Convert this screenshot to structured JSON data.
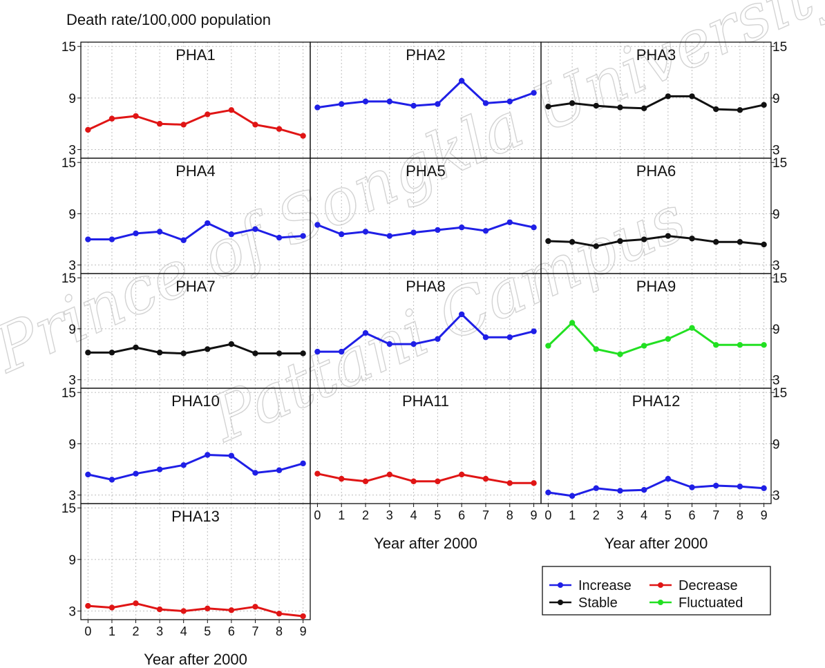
{
  "chart_data": {
    "type": "line",
    "ylabel": "Death rate/100,000 population",
    "xlabel": "Year after 2000",
    "x": [
      0,
      1,
      2,
      3,
      4,
      5,
      6,
      7,
      8,
      9
    ],
    "x_ticks": [
      "0",
      "1",
      "2",
      "3",
      "4",
      "5",
      "6",
      "7",
      "8",
      "9"
    ],
    "y_ticks": [
      "3",
      "9",
      "15"
    ],
    "ylim": [
      2,
      15.5
    ],
    "xlim": [
      -0.3,
      9.3
    ],
    "grid": true,
    "legend_position": "bottom-right",
    "legend": [
      {
        "label": "Increase",
        "color": "#1f1fe6"
      },
      {
        "label": "Decrease",
        "color": "#e01515"
      },
      {
        "label": "Stable",
        "color": "#111111"
      },
      {
        "label": "Fluctuated",
        "color": "#22e022"
      }
    ],
    "panels": [
      {
        "name": "PHA1",
        "trend": "Decrease",
        "values": [
          5.3,
          6.6,
          6.9,
          6.0,
          5.9,
          7.1,
          7.6,
          5.9,
          5.4,
          4.6
        ]
      },
      {
        "name": "PHA2",
        "trend": "Increase",
        "values": [
          7.9,
          8.3,
          8.6,
          8.6,
          8.1,
          8.3,
          11.0,
          8.4,
          8.6,
          9.6
        ]
      },
      {
        "name": "PHA3",
        "trend": "Stable",
        "values": [
          8.0,
          8.4,
          8.1,
          7.9,
          7.8,
          9.2,
          9.2,
          7.7,
          7.6,
          8.2
        ]
      },
      {
        "name": "PHA4",
        "trend": "Increase",
        "values": [
          6.0,
          6.0,
          6.7,
          6.9,
          5.9,
          7.9,
          6.6,
          7.2,
          6.2,
          6.4
        ]
      },
      {
        "name": "PHA5",
        "trend": "Increase",
        "values": [
          7.7,
          6.6,
          6.9,
          6.4,
          6.8,
          7.1,
          7.4,
          7.0,
          8.0,
          7.4
        ]
      },
      {
        "name": "PHA6",
        "trend": "Stable",
        "values": [
          5.8,
          5.7,
          5.2,
          5.8,
          6.0,
          6.4,
          6.1,
          5.7,
          5.7,
          5.4
        ]
      },
      {
        "name": "PHA7",
        "trend": "Stable",
        "values": [
          6.2,
          6.2,
          6.8,
          6.2,
          6.1,
          6.6,
          7.2,
          6.1,
          6.1,
          6.1
        ]
      },
      {
        "name": "PHA8",
        "trend": "Increase",
        "values": [
          6.3,
          6.3,
          8.5,
          7.2,
          7.2,
          7.8,
          10.7,
          8.0,
          8.0,
          8.7
        ]
      },
      {
        "name": "PHA9",
        "trend": "Fluctuated",
        "values": [
          7.0,
          9.7,
          6.6,
          6.0,
          7.0,
          7.8,
          9.1,
          7.1,
          7.1,
          7.1
        ]
      },
      {
        "name": "PHA10",
        "trend": "Increase",
        "values": [
          5.4,
          4.8,
          5.5,
          6.0,
          6.5,
          7.7,
          7.6,
          5.6,
          5.9,
          6.7
        ]
      },
      {
        "name": "PHA11",
        "trend": "Decrease",
        "values": [
          5.5,
          4.9,
          4.6,
          5.4,
          4.6,
          4.6,
          5.4,
          4.9,
          4.4,
          4.4
        ]
      },
      {
        "name": "PHA12",
        "trend": "Increase",
        "values": [
          3.3,
          2.9,
          3.8,
          3.5,
          3.6,
          4.9,
          3.9,
          4.1,
          4.0,
          3.8
        ]
      },
      {
        "name": "PHA13",
        "trend": "Decrease",
        "values": [
          3.6,
          3.4,
          3.9,
          3.2,
          3.0,
          3.3,
          3.1,
          3.5,
          2.7,
          2.4
        ]
      }
    ]
  },
  "watermark": {
    "lines": [
      "Prince of Songkla University",
      "Pattani Campus"
    ]
  }
}
